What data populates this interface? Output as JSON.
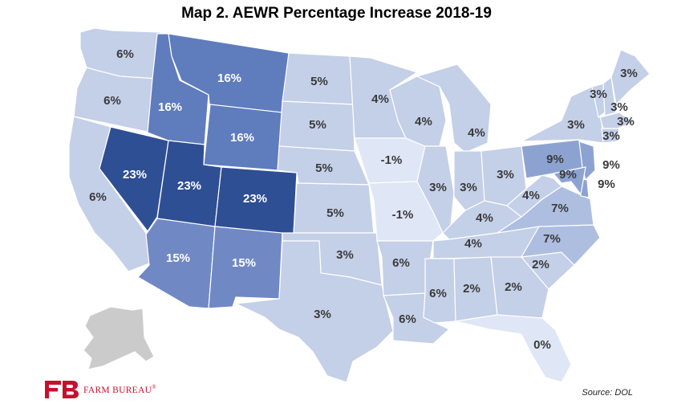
{
  "title": "Map 2. AEWR Percentage Increase 2018-19",
  "source": "Source: DOL",
  "logo": {
    "name": "FARM BUREAU",
    "mark": "®"
  },
  "colors": {
    "neg": "#dfe6f5",
    "low": "#c4cfe8",
    "mid": "#aebee0",
    "p9": "#8ca3d2",
    "p15": "#7089c4",
    "p16": "#5f7cbd",
    "p23": "#2f4f94",
    "alaska": "#cbcbcb",
    "logo_red": "#c8102e"
  },
  "states": [
    {
      "id": "WA",
      "label": "6%"
    },
    {
      "id": "OR",
      "label": "6%"
    },
    {
      "id": "CA",
      "label": "6%"
    },
    {
      "id": "NV",
      "label": "23%"
    },
    {
      "id": "ID",
      "label": "16%"
    },
    {
      "id": "MT",
      "label": "16%"
    },
    {
      "id": "WY",
      "label": "16%"
    },
    {
      "id": "UT",
      "label": "23%"
    },
    {
      "id": "CO",
      "label": "23%"
    },
    {
      "id": "AZ",
      "label": "15%"
    },
    {
      "id": "NM",
      "label": "15%"
    },
    {
      "id": "ND",
      "label": "5%"
    },
    {
      "id": "SD",
      "label": "5%"
    },
    {
      "id": "NE",
      "label": "5%"
    },
    {
      "id": "KS",
      "label": "5%"
    },
    {
      "id": "OK",
      "label": "3%"
    },
    {
      "id": "TX",
      "label": "3%"
    },
    {
      "id": "MN",
      "label": "4%"
    },
    {
      "id": "IA",
      "label": "-1%"
    },
    {
      "id": "MO",
      "label": "-1%"
    },
    {
      "id": "AR",
      "label": "6%"
    },
    {
      "id": "LA",
      "label": "6%"
    },
    {
      "id": "WI",
      "label": "4%"
    },
    {
      "id": "IL",
      "label": "3%"
    },
    {
      "id": "MI",
      "label": "4%"
    },
    {
      "id": "IN",
      "label": "3%"
    },
    {
      "id": "OH",
      "label": "3%"
    },
    {
      "id": "KY",
      "label": "4%"
    },
    {
      "id": "TN",
      "label": "4%"
    },
    {
      "id": "MS",
      "label": "6%"
    },
    {
      "id": "AL",
      "label": "2%"
    },
    {
      "id": "GA",
      "label": "2%"
    },
    {
      "id": "FL",
      "label": "0%"
    },
    {
      "id": "SC",
      "label": "2%"
    },
    {
      "id": "NC",
      "label": "7%"
    },
    {
      "id": "VA",
      "label": "7%"
    },
    {
      "id": "WV",
      "label": "4%"
    },
    {
      "id": "PA",
      "label": "9%"
    },
    {
      "id": "NY",
      "label": "3%"
    },
    {
      "id": "NJ",
      "label": "9%"
    },
    {
      "id": "DE",
      "label": "9%"
    },
    {
      "id": "MD",
      "label": "9%"
    },
    {
      "id": "VT",
      "label": "3%"
    },
    {
      "id": "NH",
      "label": "3%"
    },
    {
      "id": "ME",
      "label": "3%"
    },
    {
      "id": "MA",
      "label": "3%"
    },
    {
      "id": "CT",
      "label": "3%"
    }
  ]
}
